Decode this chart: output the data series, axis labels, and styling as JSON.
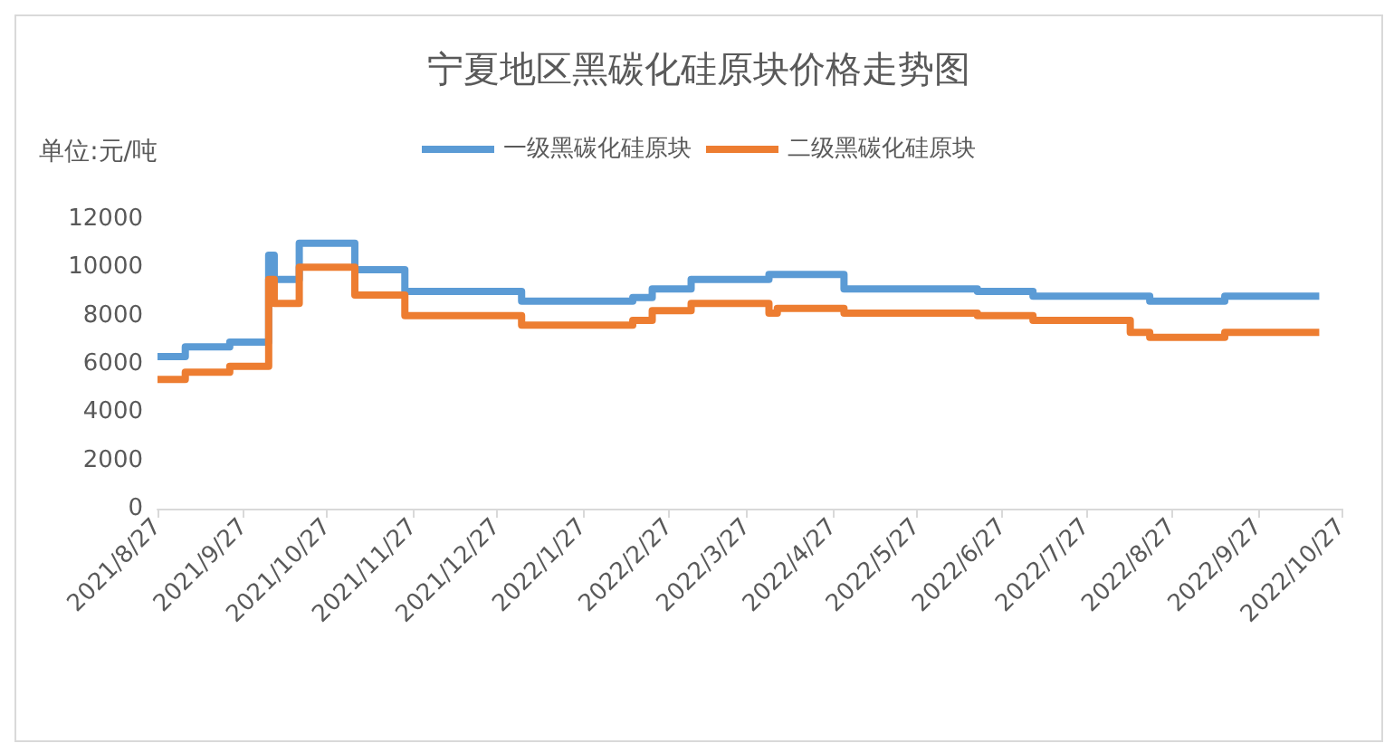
{
  "chart_data": {
    "type": "step",
    "title": "宁夏地区黑碳化硅原块价格走势图",
    "ylabel": "单位:元/吨",
    "series": [
      {
        "name": "一级黑碳化硅原块",
        "color": "#5b9bd5",
        "x": [
          "2021-08-27",
          "2021-09-06",
          "2021-09-22",
          "2021-10-06",
          "2021-10-08",
          "2021-10-17",
          "2021-11-06",
          "2021-11-24",
          "2022-01-05",
          "2022-02-14",
          "2022-02-21",
          "2022-03-07",
          "2022-04-04",
          "2022-05-01",
          "2022-06-18",
          "2022-07-08",
          "2022-08-19",
          "2022-09-15",
          "2022-10-19"
        ],
        "values": [
          6300,
          6700,
          6900,
          10500,
          9500,
          11000,
          9900,
          9000,
          8600,
          8750,
          9100,
          9500,
          9700,
          9100,
          9000,
          8800,
          8600,
          8800,
          8800
        ]
      },
      {
        "name": "二级黑碳化硅原块",
        "color": "#ed7d31",
        "x": [
          "2021-08-27",
          "2021-09-06",
          "2021-09-22",
          "2021-10-06",
          "2021-10-08",
          "2021-10-17",
          "2021-11-06",
          "2021-11-24",
          "2022-01-05",
          "2022-02-14",
          "2022-02-21",
          "2022-03-07",
          "2022-04-04",
          "2022-04-07",
          "2022-05-01",
          "2022-06-18",
          "2022-07-08",
          "2022-08-12",
          "2022-08-19",
          "2022-09-15",
          "2022-10-19"
        ],
        "values": [
          5350,
          5650,
          5900,
          9500,
          8500,
          10000,
          8850,
          8000,
          7600,
          7800,
          8200,
          8500,
          8100,
          8300,
          8100,
          8000,
          7800,
          7300,
          7100,
          7300,
          7300
        ]
      }
    ],
    "xlim": [
      "2021-08-27",
      "2022-10-27"
    ],
    "xticks": [
      {
        "value": "2021-08-27",
        "label": "2021/8/27"
      },
      {
        "value": "2021-09-27",
        "label": "2021/9/27"
      },
      {
        "value": "2021-10-27",
        "label": "2021/10/27"
      },
      {
        "value": "2021-11-27",
        "label": "2021/11/27"
      },
      {
        "value": "2021-12-27",
        "label": "2021/12/27"
      },
      {
        "value": "2022-01-27",
        "label": "2022/1/27"
      },
      {
        "value": "2022-02-27",
        "label": "2022/2/27"
      },
      {
        "value": "2022-03-27",
        "label": "2022/3/27"
      },
      {
        "value": "2022-04-27",
        "label": "2022/4/27"
      },
      {
        "value": "2022-05-27",
        "label": "2022/5/27"
      },
      {
        "value": "2022-06-27",
        "label": "2022/6/27"
      },
      {
        "value": "2022-07-27",
        "label": "2022/7/27"
      },
      {
        "value": "2022-08-27",
        "label": "2022/8/27"
      },
      {
        "value": "2022-09-27",
        "label": "2022/9/27"
      },
      {
        "value": "2022-10-27",
        "label": "2022/10/27"
      }
    ],
    "ylim": [
      0,
      12000
    ],
    "yticks": [
      0,
      2000,
      4000,
      6000,
      8000,
      10000,
      12000
    ],
    "grid": false,
    "legend": "top",
    "marker": "none"
  }
}
